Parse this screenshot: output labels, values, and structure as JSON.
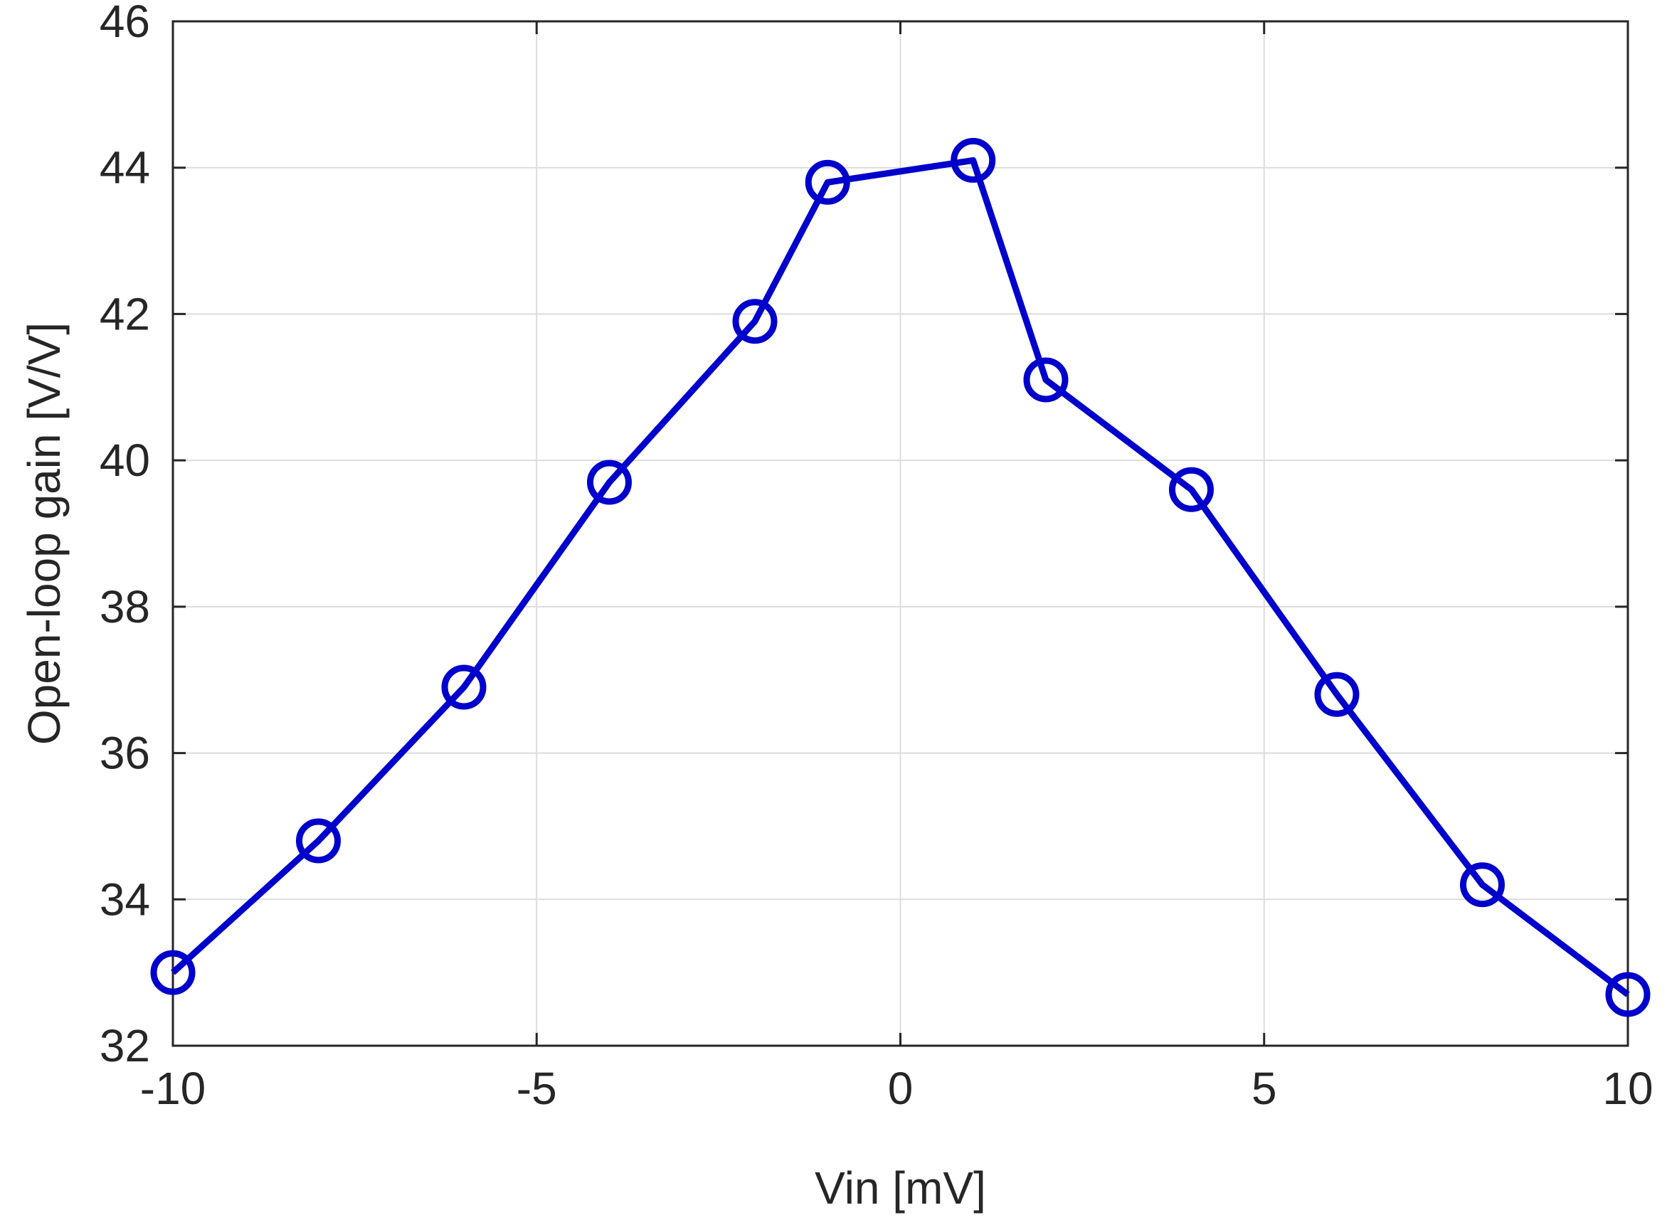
{
  "chart_data": {
    "type": "line",
    "xlabel": "Vin [mV]",
    "ylabel": "Open-loop gain [V/V]",
    "xlim": [
      -10,
      10
    ],
    "ylim": [
      32,
      46
    ],
    "xticks": [
      -10,
      -5,
      0,
      5,
      10
    ],
    "xtick_labels": [
      "-10",
      "-5",
      "0",
      "5",
      "10"
    ],
    "yticks": [
      32,
      34,
      36,
      38,
      40,
      42,
      44,
      46
    ],
    "ytick_labels": [
      "32",
      "34",
      "36",
      "38",
      "40",
      "42",
      "44",
      "46"
    ],
    "grid": true,
    "series": [
      {
        "x": [
          -10,
          -8,
          -6,
          -4,
          -2,
          -1,
          1,
          2,
          4,
          6,
          8,
          10
        ],
        "y": [
          33.0,
          34.8,
          36.9,
          39.7,
          41.9,
          43.8,
          44.1,
          41.1,
          39.6,
          36.8,
          34.2,
          32.7
        ],
        "color": "#0000cc",
        "marker": "circle-open"
      }
    ]
  }
}
